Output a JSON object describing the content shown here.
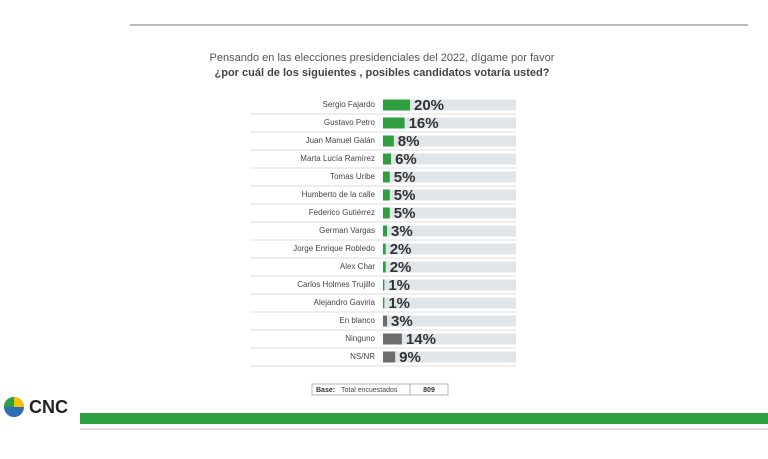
{
  "chart_data": {
    "type": "hbar",
    "title": "Pensando en las elecciones presidenciales del 2022,  dígame por favor",
    "subtitle": "¿por cuál de los siguientes ,  posibles candidatos votaría usted?",
    "categories": [
      "Sergio Fajardo",
      "Gustavo Petro",
      "Juan Manuel Galán",
      "Marta Lucía Ramírez",
      "Tomas Uribe",
      "Humberto de la calle",
      "Federico Gutiérrez",
      "German Vargas",
      "Jorge Enrique Robledo",
      "Alex Char",
      "Carlos Holmes Trujillo",
      "Alejandro Gaviria",
      "En blanco",
      "Ninguno",
      "NS/NR"
    ],
    "values": [
      20,
      16,
      8,
      6,
      5,
      5,
      5,
      3,
      2,
      2,
      1,
      1,
      3,
      14,
      9
    ],
    "value_labels": [
      "20%",
      "16%",
      "8%",
      "6%",
      "5%",
      "5%",
      "5%",
      "3%",
      "2%",
      "2%",
      "1%",
      "1%",
      "3%",
      "14%",
      "9%"
    ],
    "colors": [
      "#2e9e3e",
      "#2e9e3e",
      "#2e9e3e",
      "#2e9e3e",
      "#2e9e3e",
      "#2e9e3e",
      "#2e9e3e",
      "#2e9e3e",
      "#2e9e3e",
      "#2e9e3e",
      "#2e9e3e",
      "#2e9e3e",
      "#6d6d6d",
      "#6d6d6d",
      "#6d6d6d"
    ]
  },
  "footer": {
    "base_label": "Base:",
    "base_text": "Total encuestados",
    "base_value": "809"
  },
  "logo": "CNC"
}
